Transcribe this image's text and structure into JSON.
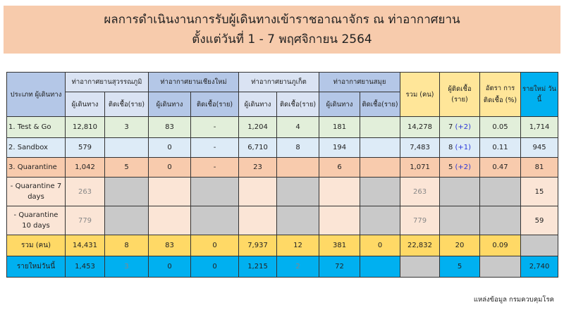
{
  "title": {
    "line1": "ผลการดำเนินงานการรับผู้เดินทางเข้าราชอาณาจักร ณ ท่าอากาศยาน",
    "line2": "ตั้งแต่วันที่  1 - 7  พฤศจิกายน 2564"
  },
  "header": {
    "type": "ประเภท ผู้เดินทาง",
    "airports": [
      "ท่าอากาศยานสุวรรณภูมิ",
      "ท่าอากาศยานเชียงใหม่",
      "ท่าอากาศยานภูเก็ต",
      "ท่าอากาศยานสมุย"
    ],
    "sub_travelers": "ผู้เดินทาง",
    "sub_infected": "ติดเชื้อ(ราย)",
    "total": "รวม (คน)",
    "infected": "ผู้ติดเชื้อ (ราย)",
    "rate": "อัตรา การติดเชื้อ (%)",
    "new_today": "รายใหม่ วันนี้"
  },
  "colors": {
    "header": "#b4c7e7",
    "subheader": "#dae3f3",
    "summary_header": "#ffe699",
    "new_header": "#00b0f0",
    "test_go": "#e2efda",
    "sandbox": "#ddebf7",
    "quarantine": "#f8cbad",
    "quarantine_sub": "#fbe5d6",
    "total": "#ffd966",
    "new_row": "#00b0f0",
    "disabled": "#c9c9c9",
    "delta": "#2a35d8"
  },
  "rows": [
    {
      "label": "1. Test & Go",
      "cells": [
        "12,810",
        "3",
        "83",
        "-",
        "1,204",
        "4",
        "181",
        "",
        "14,278",
        "7",
        "0.05",
        "1,714"
      ],
      "delta": "(+2)"
    },
    {
      "label": "2. Sandbox",
      "cells": [
        "579",
        "",
        "0",
        "-",
        "6,710",
        "8",
        "194",
        "",
        "7,483",
        "8",
        "0.11",
        "945"
      ],
      "delta": "(+1)"
    },
    {
      "label": "3. Quarantine",
      "cells": [
        "1,042",
        "5",
        "0",
        "-",
        "23",
        "",
        "6",
        "",
        "1,071",
        "5",
        "0.47",
        "81"
      ],
      "delta": "(+2)"
    },
    {
      "label": "- Quarantine 7 days",
      "cells": [
        "263",
        "",
        "",
        "",
        "",
        "",
        "",
        "",
        "263",
        "",
        "",
        "15"
      ]
    },
    {
      "label": "- Quarantine 10 days",
      "cells": [
        "779",
        "",
        "",
        "",
        "",
        "",
        "",
        "",
        "779",
        "",
        "",
        "59"
      ]
    },
    {
      "label": "รวม (คน)",
      "cells": [
        "14,431",
        "8",
        "83",
        "0",
        "7,937",
        "12",
        "381",
        "0",
        "22,832",
        "20",
        "0.09",
        ""
      ]
    },
    {
      "label": "รายใหม่วันนี้",
      "cells": [
        "1,453",
        "3",
        "0",
        "0",
        "1,215",
        "2",
        "72",
        "",
        "",
        "5",
        "",
        ""
      ]
    }
  ],
  "new_today_total": "2,740",
  "source": "แหล่งข้อมูล กรมควบคุมโรค"
}
